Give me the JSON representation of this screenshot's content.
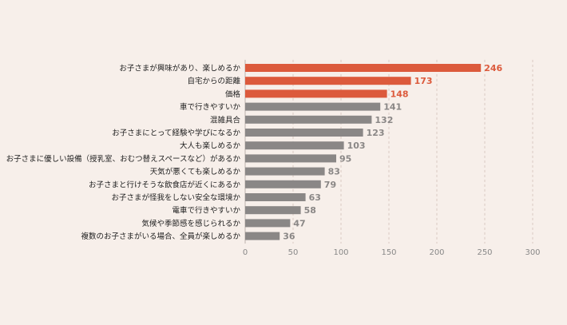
{
  "chart_data": {
    "type": "bar",
    "orientation": "horizontal",
    "title": "",
    "xlabel": "",
    "ylabel": "",
    "xlim": [
      0,
      300
    ],
    "xticks": [
      0,
      50,
      100,
      150,
      200,
      250,
      300
    ],
    "grid": true,
    "highlight_top_n": 3,
    "colors": {
      "highlight": "#dc5a3c",
      "default": "#8a8786",
      "highlight_text": "#dc5a3c",
      "default_text": "#8a8786",
      "background": "#f7efea"
    },
    "categories": [
      "お子さまが興味があり、楽しめるか",
      "自宅からの距離",
      "価格",
      "車で行きやすいか",
      "混雑具合",
      "お子さまにとって経験や学びになるか",
      "大人も楽しめるか",
      "お子さまに優しい設備（授乳室、おむつ替えスペースなど）があるか",
      "天気が悪くても楽しめるか",
      "お子さまと行けそうな飲食店が近くにあるか",
      "お子さまが怪我をしない安全な環境か",
      "電車で行きやすいか",
      "気候や季節感を感じられるか",
      "複数のお子さまがいる場合、全員が楽しめるか"
    ],
    "values": [
      246,
      173,
      148,
      141,
      132,
      123,
      103,
      95,
      83,
      79,
      63,
      58,
      47,
      36
    ]
  }
}
